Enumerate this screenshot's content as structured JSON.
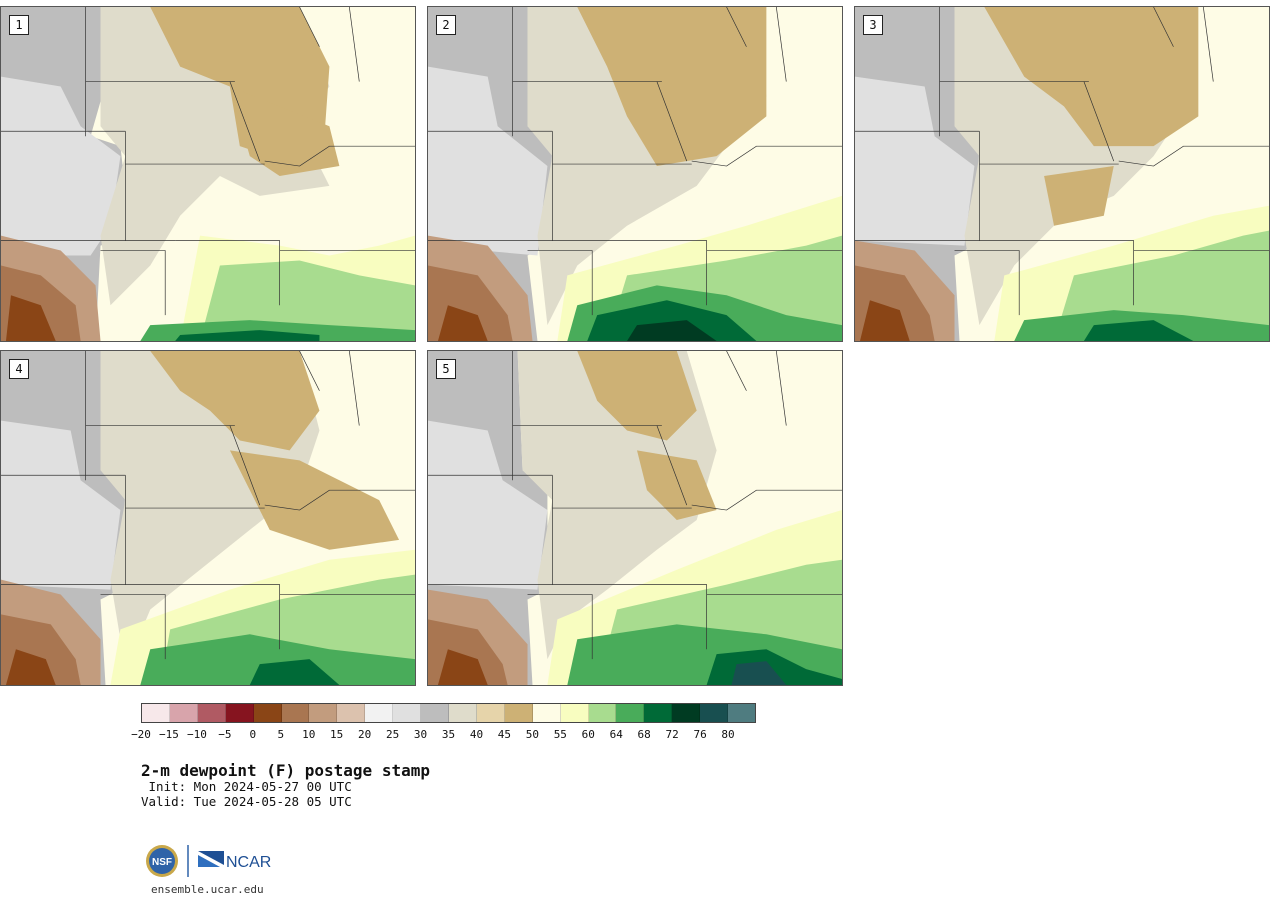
{
  "panels": [
    {
      "label": "1"
    },
    {
      "label": "2"
    },
    {
      "label": "3"
    },
    {
      "label": "4"
    },
    {
      "label": "5"
    }
  ],
  "colorbar": {
    "colors": [
      "#f7e8ea",
      "#d8a4ab",
      "#b05a63",
      "#86141f",
      "#8a4516",
      "#a97651",
      "#c29c7e",
      "#dcc2ae",
      "#f2f2f2",
      "#e0e0e0",
      "#bdbdbd",
      "#dfdccb",
      "#e6d4aa",
      "#cdb175",
      "#fefce6",
      "#f8fdc0",
      "#a8dc8f",
      "#49ac5a",
      "#006a37",
      "#003b22",
      "#184f50",
      "#4f7c80"
    ],
    "ticks": [
      "−20",
      "−15",
      "−10",
      "−5",
      "0",
      "5",
      "10",
      "15",
      "20",
      "25",
      "30",
      "35",
      "40",
      "45",
      "50",
      "55",
      "60",
      "64",
      "68",
      "72",
      "76",
      "80"
    ]
  },
  "title": "2-m dewpoint (F) postage stamp",
  "init": " Init: Mon 2024-05-27 00 UTC",
  "valid": "Valid: Tue 2024-05-28 05 UTC",
  "logos": {
    "nsf": "NSF",
    "ncar": "NCAR"
  },
  "site": "ensemble.ucar.edu"
}
